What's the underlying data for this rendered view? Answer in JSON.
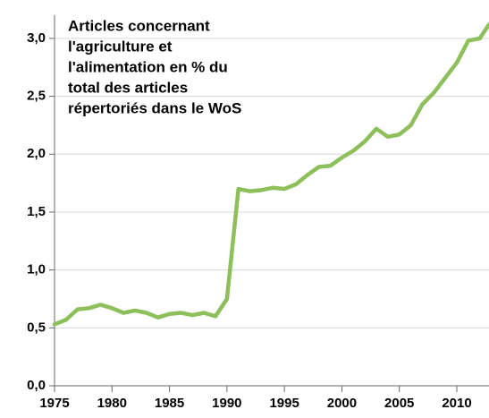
{
  "chart_data": {
    "type": "line",
    "title": [
      "Articles concernant",
      "l'agriculture et",
      "l'alimentation en % du",
      "total des articles",
      "répertoriés dans le WoS"
    ],
    "x": [
      1975,
      1976,
      1977,
      1978,
      1979,
      1980,
      1981,
      1982,
      1983,
      1984,
      1985,
      1986,
      1987,
      1988,
      1989,
      1990,
      1991,
      1992,
      1993,
      1994,
      1995,
      1996,
      1997,
      1998,
      1999,
      2000,
      2001,
      2002,
      2003,
      2004,
      2005,
      2006,
      2007,
      2008,
      2009,
      2010,
      2011,
      2012,
      2012.8
    ],
    "series": [
      {
        "color": "#8dbf5a",
        "values": [
          0.53,
          0.57,
          0.66,
          0.67,
          0.7,
          0.67,
          0.63,
          0.65,
          0.63,
          0.59,
          0.62,
          0.63,
          0.61,
          0.63,
          0.6,
          0.75,
          1.7,
          1.68,
          1.69,
          1.71,
          1.7,
          1.74,
          1.82,
          1.89,
          1.9,
          1.97,
          2.03,
          2.11,
          2.22,
          2.15,
          2.17,
          2.25,
          2.43,
          2.53,
          2.66,
          2.79,
          2.98,
          3.0,
          3.12
        ]
      }
    ],
    "xlim": [
      1975,
      2012.8
    ],
    "ylim": [
      0,
      3.2
    ],
    "xticks": [
      1975,
      1980,
      1985,
      1990,
      1995,
      2000,
      2005,
      2010
    ],
    "yticks": [
      {
        "value": 0,
        "label": "0,0"
      },
      {
        "value": 0.5,
        "label": "0,5"
      },
      {
        "value": 1,
        "label": "1,0"
      },
      {
        "value": 1.5,
        "label": "1,5"
      },
      {
        "value": 2,
        "label": "2,0"
      },
      {
        "value": 2.5,
        "label": "2,5"
      },
      {
        "value": 3,
        "label": "3,0"
      }
    ],
    "grid": true
  }
}
